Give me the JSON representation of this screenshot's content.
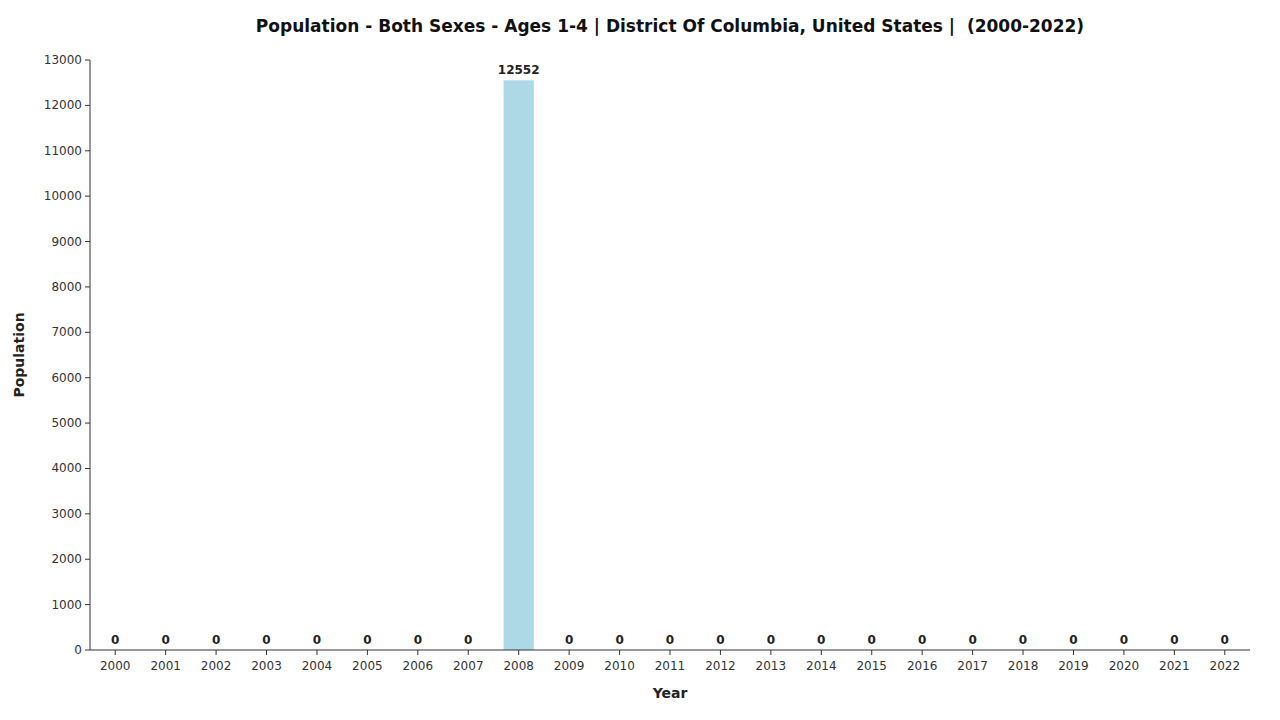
{
  "chart_data": {
    "type": "bar",
    "title": "Population - Both Sexes - Ages 1-4 | District Of Columbia, United States |  (2000-2022)",
    "x_label": "Year",
    "y_label": "Population",
    "categories": [
      "2000",
      "2001",
      "2002",
      "2003",
      "2004",
      "2005",
      "2006",
      "2007",
      "2008",
      "2009",
      "2010",
      "2011",
      "2012",
      "2013",
      "2014",
      "2015",
      "2016",
      "2017",
      "2018",
      "2019",
      "2020",
      "2021",
      "2022"
    ],
    "values": [
      0,
      0,
      0,
      0,
      0,
      0,
      0,
      0,
      12552,
      0,
      0,
      0,
      0,
      0,
      0,
      0,
      0,
      0,
      0,
      0,
      0,
      0,
      0
    ],
    "color": "#ADD8E6",
    "ylim": [
      0,
      13000
    ],
    "yticks": [
      0,
      1000,
      2000,
      3000,
      4000,
      5000,
      6000,
      7000,
      8000,
      9000,
      10000,
      11000,
      12000,
      13000
    ],
    "grid": false,
    "data_labels": true
  }
}
